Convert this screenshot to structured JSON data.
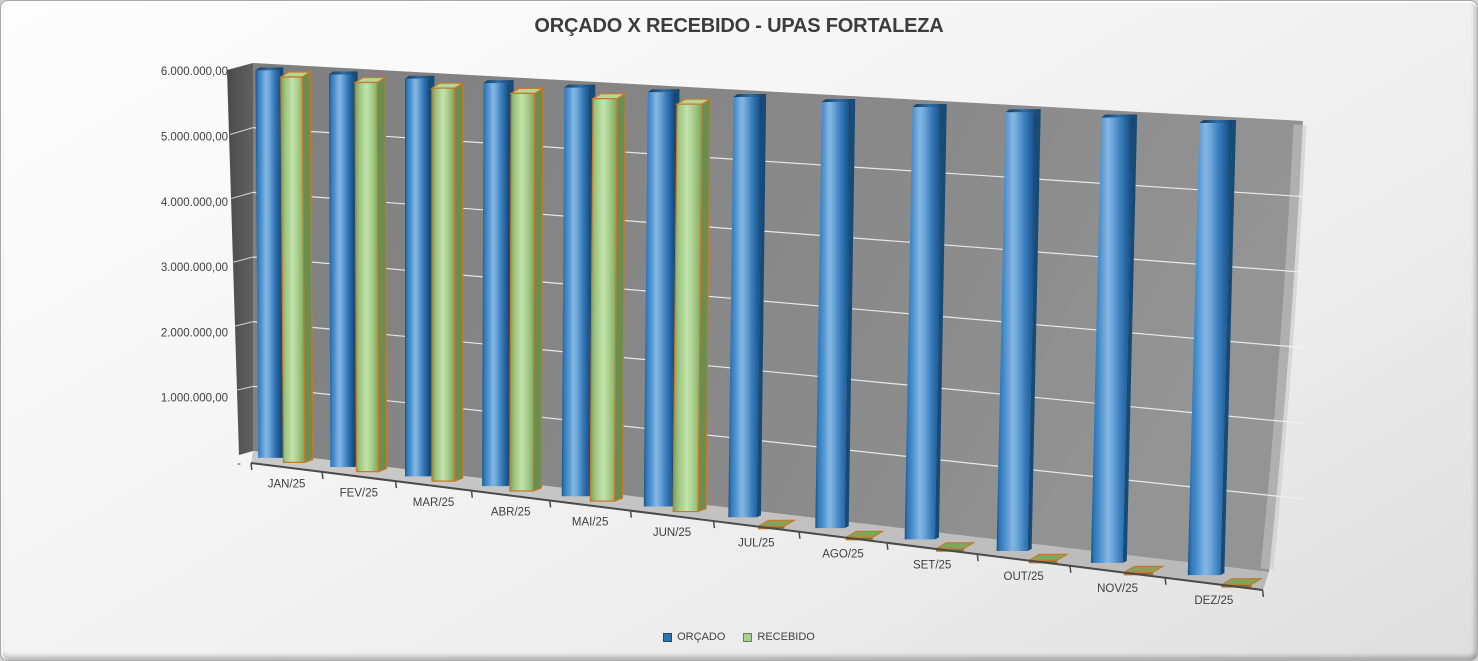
{
  "title": "ORÇADO X RECEBIDO - UPAS FORTALEZA",
  "chart_data": {
    "type": "bar",
    "projection": "3d-perspective",
    "title": "ORÇADO X RECEBIDO - UPAS FORTALEZA",
    "categories": [
      "JAN/25",
      "FEV/25",
      "MAR/25",
      "ABR/25",
      "MAI/25",
      "JUN/25",
      "JUL/25",
      "AGO/25",
      "SET/25",
      "OUT/25",
      "NOV/25",
      "DEZ/25"
    ],
    "series": [
      {
        "name": "ORÇADO",
        "color": "#2E75B6",
        "values": [
          5900000,
          5900000,
          5900000,
          5900000,
          5900000,
          5900000,
          5900000,
          5900000,
          5900000,
          5900000,
          5900000,
          5900000
        ]
      },
      {
        "name": "RECEBIDO",
        "color": "#A9D18E",
        "border_color": "#C9782A",
        "values": [
          5820000,
          5800000,
          5780000,
          5770000,
          5760000,
          5750000,
          0,
          0,
          0,
          0,
          0,
          0
        ]
      }
    ],
    "ylim": [
      0,
      6000000
    ],
    "y_tick_labels": [
      "-",
      "1.000.000,00",
      "2.000.000,00",
      "3.000.000,00",
      "4.000.000,00",
      "5.000.000,00",
      "6.000.000,00"
    ],
    "grid": true,
    "legend_position": "bottom"
  },
  "colors": {
    "wall": "#888888",
    "wall_side": "#565656",
    "floor": "#c2c2c2",
    "gridline": "#f2f2f2",
    "axis_line": "#4a4a4a",
    "title_text": "#3c3c3c",
    "axis_text": "#3f3f3f"
  }
}
